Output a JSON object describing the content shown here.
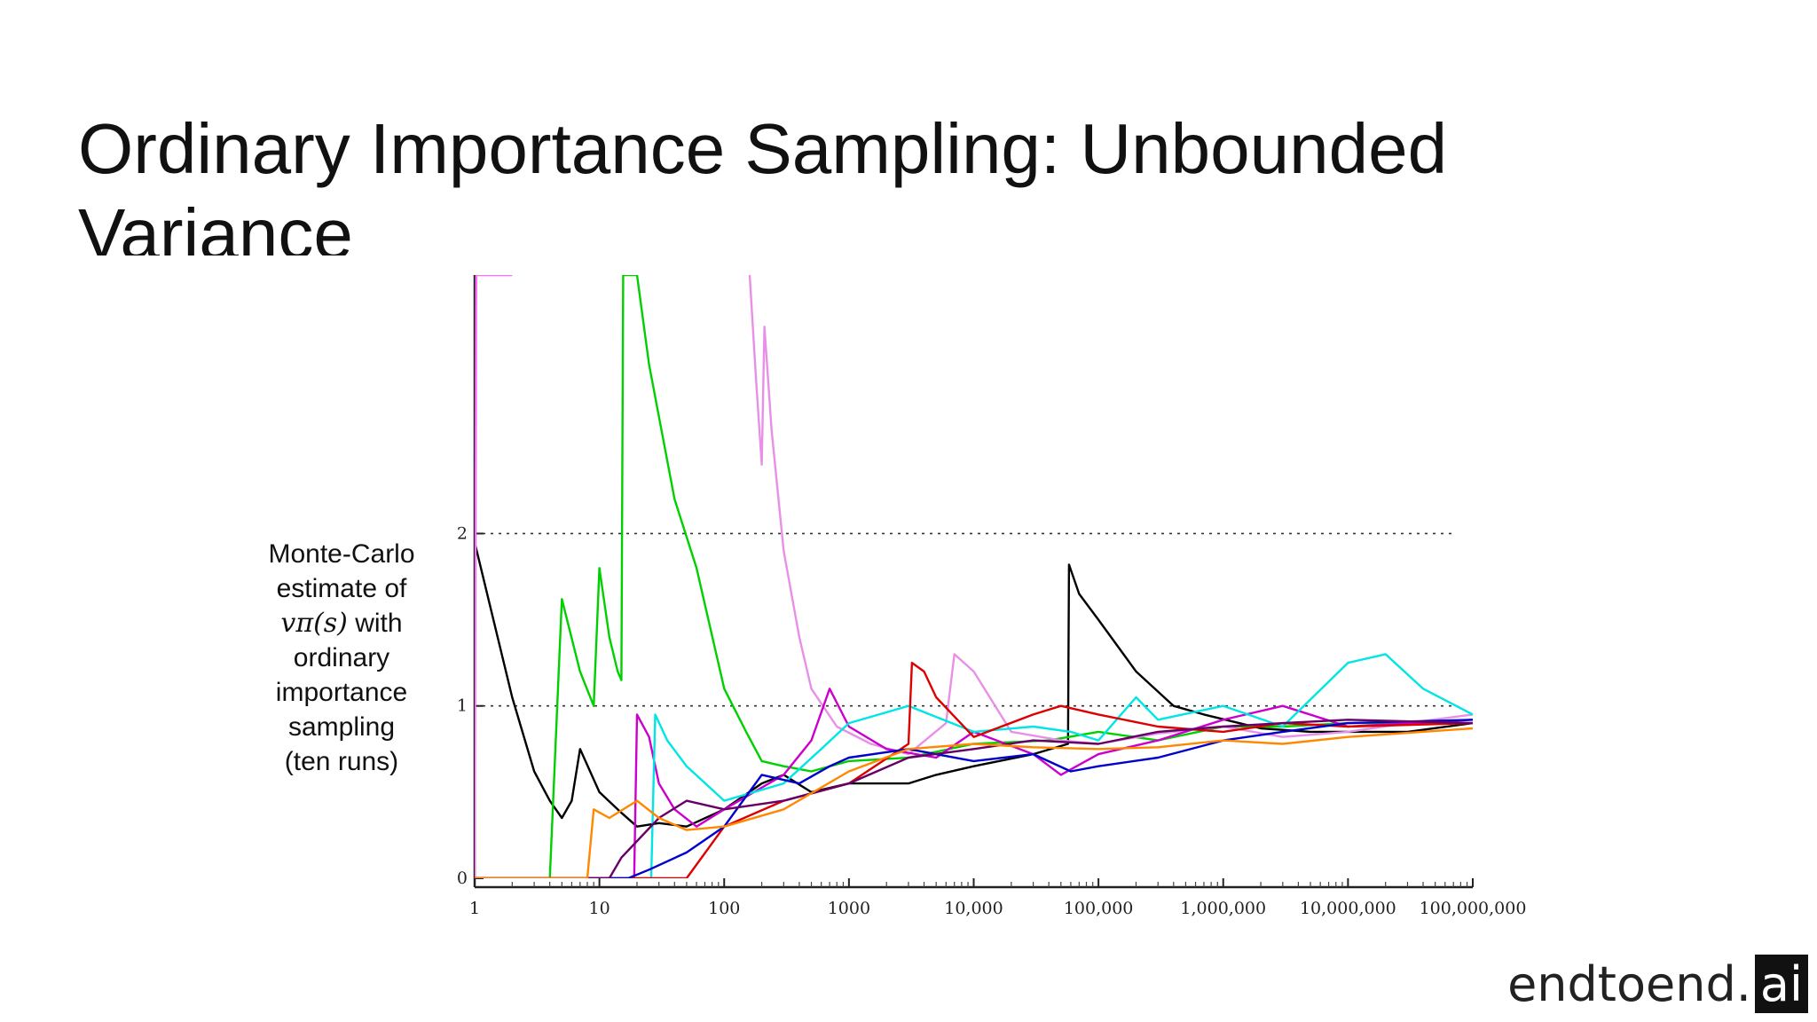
{
  "slide": {
    "title": "Ordinary Importance Sampling: Unbounded Variance"
  },
  "brand": {
    "main": "endtoend.",
    "box": "ai"
  },
  "chart_data": {
    "type": "line",
    "title": "",
    "xscale": "log",
    "xlim": [
      1,
      100000000
    ],
    "ylim": [
      0,
      3.5
    ],
    "yticks": [
      0,
      1,
      2
    ],
    "ytick_labels": [
      "0",
      "1",
      "2"
    ],
    "xticks": [
      1,
      10,
      100,
      1000,
      10000,
      100000,
      1000000,
      10000000,
      100000000
    ],
    "xtick_labels": [
      "1",
      "10",
      "100",
      "1000",
      "10,000",
      "100,000",
      "1,000,000",
      "10,000,000",
      "100,000,000"
    ],
    "reference_lines": [
      1,
      2
    ],
    "ylabel_lines": [
      "Monte-Carlo",
      "estimate of",
      "with",
      "ordinary",
      "importance",
      "sampling",
      "(ten runs)"
    ],
    "ylabel_math": "vπ(s)",
    "grid": false,
    "series": [
      {
        "color": "#000000",
        "points": [
          [
            1,
            1.95
          ],
          [
            2,
            1.05
          ],
          [
            3,
            0.62
          ],
          [
            4,
            0.45
          ],
          [
            5,
            0.35
          ],
          [
            6,
            0.45
          ],
          [
            7,
            0.75
          ],
          [
            10,
            0.5
          ],
          [
            15,
            0.38
          ],
          [
            20,
            0.3
          ],
          [
            30,
            0.32
          ],
          [
            50,
            0.3
          ],
          [
            100,
            0.4
          ],
          [
            200,
            0.55
          ],
          [
            300,
            0.6
          ],
          [
            500,
            0.5
          ],
          [
            1000,
            0.55
          ],
          [
            3000,
            0.55
          ],
          [
            5000,
            0.6
          ],
          [
            10000,
            0.65
          ],
          [
            30000,
            0.72
          ],
          [
            57000,
            0.78
          ],
          [
            58000,
            1.82
          ],
          [
            70000,
            1.65
          ],
          [
            100000,
            1.5
          ],
          [
            200000,
            1.2
          ],
          [
            400000,
            1.0
          ],
          [
            700000,
            0.95
          ],
          [
            2000000,
            0.87
          ],
          [
            5000000,
            0.85
          ],
          [
            10000000,
            0.85
          ],
          [
            30000000,
            0.85
          ],
          [
            100000000,
            0.9
          ]
        ]
      },
      {
        "color": "#ff6bff",
        "points": [
          [
            1,
            0
          ],
          [
            1.03,
            3.5
          ],
          [
            2,
            3.5
          ]
        ]
      },
      {
        "color": "#00d000",
        "points": [
          [
            1,
            0
          ],
          [
            4,
            0
          ],
          [
            5,
            1.62
          ],
          [
            7,
            1.2
          ],
          [
            9,
            1.0
          ],
          [
            10,
            1.8
          ],
          [
            12,
            1.4
          ],
          [
            14,
            1.2
          ],
          [
            15,
            1.15
          ],
          [
            15.5,
            3.5
          ],
          [
            20,
            3.5
          ],
          [
            25,
            2.98
          ],
          [
            40,
            2.2
          ],
          [
            60,
            1.8
          ],
          [
            100,
            1.1
          ],
          [
            150,
            0.85
          ],
          [
            200,
            0.68
          ],
          [
            300,
            0.65
          ],
          [
            500,
            0.62
          ],
          [
            1000,
            0.68
          ],
          [
            3000,
            0.7
          ],
          [
            10000,
            0.78
          ],
          [
            40000,
            0.8
          ],
          [
            100000,
            0.85
          ],
          [
            300000,
            0.8
          ],
          [
            1000000,
            0.88
          ],
          [
            3000000,
            0.88
          ],
          [
            10000000,
            0.9
          ],
          [
            100000000,
            0.9
          ]
        ]
      },
      {
        "color": "#e890e8",
        "points": [
          [
            160,
            3.5
          ],
          [
            180,
            2.9
          ],
          [
            200,
            2.4
          ],
          [
            210,
            3.2
          ],
          [
            240,
            2.6
          ],
          [
            300,
            1.9
          ],
          [
            400,
            1.4
          ],
          [
            500,
            1.1
          ],
          [
            800,
            0.88
          ],
          [
            1500,
            0.78
          ],
          [
            3000,
            0.72
          ],
          [
            6000,
            0.9
          ],
          [
            7000,
            1.3
          ],
          [
            10000,
            1.2
          ],
          [
            20000,
            0.85
          ],
          [
            50000,
            0.8
          ],
          [
            100000,
            0.78
          ],
          [
            300000,
            0.84
          ],
          [
            1000000,
            0.88
          ],
          [
            3000000,
            0.82
          ],
          [
            10000000,
            0.85
          ],
          [
            30000000,
            0.9
          ],
          [
            100000000,
            0.95
          ]
        ]
      },
      {
        "color": "#cc00cc",
        "points": [
          [
            1,
            0
          ],
          [
            19,
            0
          ],
          [
            20,
            0.95
          ],
          [
            25,
            0.82
          ],
          [
            30,
            0.55
          ],
          [
            40,
            0.4
          ],
          [
            60,
            0.3
          ],
          [
            100,
            0.4
          ],
          [
            300,
            0.6
          ],
          [
            500,
            0.8
          ],
          [
            700,
            1.1
          ],
          [
            1000,
            0.88
          ],
          [
            2000,
            0.75
          ],
          [
            5000,
            0.7
          ],
          [
            10000,
            0.85
          ],
          [
            30000,
            0.72
          ],
          [
            50000,
            0.6
          ],
          [
            100000,
            0.72
          ],
          [
            300000,
            0.8
          ],
          [
            1000000,
            0.92
          ],
          [
            3000000,
            1.0
          ],
          [
            10000000,
            0.88
          ],
          [
            100000000,
            0.92
          ]
        ]
      },
      {
        "color": "#00e5e5",
        "points": [
          [
            1,
            0
          ],
          [
            26,
            0
          ],
          [
            28,
            0.95
          ],
          [
            35,
            0.8
          ],
          [
            50,
            0.65
          ],
          [
            100,
            0.45
          ],
          [
            300,
            0.55
          ],
          [
            600,
            0.75
          ],
          [
            1000,
            0.9
          ],
          [
            3000,
            1.0
          ],
          [
            10000,
            0.85
          ],
          [
            30000,
            0.88
          ],
          [
            60000,
            0.85
          ],
          [
            100000,
            0.8
          ],
          [
            200000,
            1.05
          ],
          [
            300000,
            0.92
          ],
          [
            1000000,
            1.0
          ],
          [
            3000000,
            0.88
          ],
          [
            10000000,
            1.25
          ],
          [
            20000000,
            1.3
          ],
          [
            40000000,
            1.1
          ],
          [
            100000000,
            0.95
          ]
        ]
      },
      {
        "color": "#dd0000",
        "points": [
          [
            1,
            0
          ],
          [
            50,
            0
          ],
          [
            100,
            0.3
          ],
          [
            300,
            0.45
          ],
          [
            1000,
            0.55
          ],
          [
            3000,
            0.78
          ],
          [
            3200,
            1.25
          ],
          [
            4000,
            1.2
          ],
          [
            5000,
            1.05
          ],
          [
            10000,
            0.82
          ],
          [
            30000,
            0.95
          ],
          [
            50000,
            1.0
          ],
          [
            100000,
            0.95
          ],
          [
            300000,
            0.88
          ],
          [
            1000000,
            0.85
          ],
          [
            3000000,
            0.9
          ],
          [
            10000000,
            0.88
          ],
          [
            100000000,
            0.9
          ]
        ]
      },
      {
        "color": "#0000cc",
        "points": [
          [
            1,
            0
          ],
          [
            17,
            0
          ],
          [
            25,
            0.05
          ],
          [
            50,
            0.15
          ],
          [
            100,
            0.3
          ],
          [
            200,
            0.6
          ],
          [
            400,
            0.55
          ],
          [
            700,
            0.65
          ],
          [
            1000,
            0.7
          ],
          [
            3000,
            0.75
          ],
          [
            10000,
            0.68
          ],
          [
            30000,
            0.72
          ],
          [
            60000,
            0.62
          ],
          [
            100000,
            0.65
          ],
          [
            300000,
            0.7
          ],
          [
            1000000,
            0.8
          ],
          [
            3000000,
            0.85
          ],
          [
            10000000,
            0.9
          ],
          [
            100000000,
            0.92
          ]
        ]
      },
      {
        "color": "#660066",
        "points": [
          [
            1,
            0
          ],
          [
            12,
            0
          ],
          [
            15,
            0.12
          ],
          [
            30,
            0.35
          ],
          [
            50,
            0.45
          ],
          [
            100,
            0.4
          ],
          [
            300,
            0.45
          ],
          [
            1000,
            0.55
          ],
          [
            3000,
            0.7
          ],
          [
            10000,
            0.75
          ],
          [
            30000,
            0.8
          ],
          [
            100000,
            0.78
          ],
          [
            300000,
            0.85
          ],
          [
            1000000,
            0.88
          ],
          [
            3000000,
            0.9
          ],
          [
            10000000,
            0.92
          ],
          [
            100000000,
            0.9
          ]
        ]
      },
      {
        "color": "#ff8800",
        "points": [
          [
            1,
            0
          ],
          [
            8,
            0
          ],
          [
            9,
            0.4
          ],
          [
            12,
            0.35
          ],
          [
            20,
            0.45
          ],
          [
            30,
            0.35
          ],
          [
            50,
            0.28
          ],
          [
            100,
            0.3
          ],
          [
            300,
            0.4
          ],
          [
            1000,
            0.62
          ],
          [
            3000,
            0.75
          ],
          [
            10000,
            0.78
          ],
          [
            30000,
            0.76
          ],
          [
            100000,
            0.75
          ],
          [
            300000,
            0.76
          ],
          [
            1000000,
            0.8
          ],
          [
            3000000,
            0.78
          ],
          [
            10000000,
            0.82
          ],
          [
            100000000,
            0.87
          ]
        ]
      }
    ]
  }
}
